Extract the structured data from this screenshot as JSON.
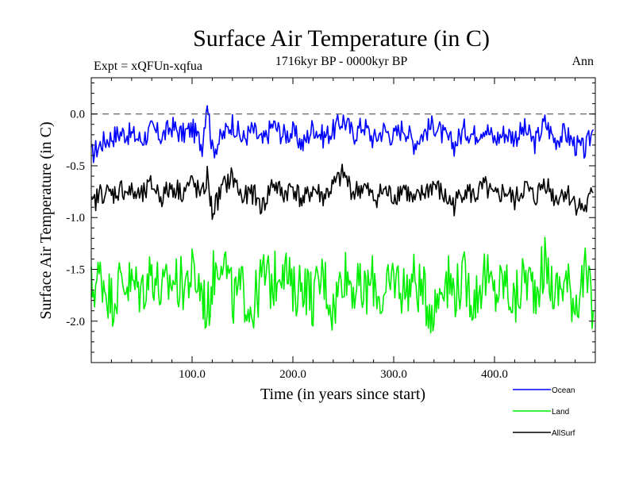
{
  "chart_data": {
    "type": "line",
    "title": "Surface Air Temperature (in C)",
    "subtitle_left": "Expt = xQFUn-xqfua",
    "subtitle_center": "1716kyr BP - 0000kyr BP",
    "subtitle_right": "Ann",
    "xlabel": "Time (in years since start)",
    "ylabel": "Surface Air Temperature (in C)",
    "xlim": [
      0,
      500
    ],
    "ylim": [
      -2.4,
      0.35
    ],
    "x_ticks": [
      100,
      200,
      300,
      400
    ],
    "x_tick_labels": [
      "100.0",
      "200.0",
      "300.0",
      "400.0"
    ],
    "y_ticks": [
      0.0,
      -0.5,
      -1.0,
      -1.5,
      -2.0
    ],
    "y_tick_labels": [
      "0.0",
      "-0.5",
      "-1.0",
      "-1.5",
      "-2.0"
    ],
    "reference_line": 0.0,
    "legend_position": "bottom-right",
    "x": [
      0,
      10,
      20,
      30,
      40,
      50,
      60,
      70,
      80,
      90,
      100,
      110,
      115,
      120,
      130,
      140,
      150,
      160,
      170,
      180,
      190,
      200,
      210,
      220,
      230,
      240,
      250,
      260,
      270,
      280,
      290,
      300,
      310,
      320,
      330,
      340,
      350,
      360,
      370,
      380,
      390,
      400,
      410,
      420,
      430,
      440,
      450,
      460,
      470,
      480,
      490,
      498
    ],
    "series": [
      {
        "name": "Ocean",
        "color": "#0000ff",
        "values": [
          -0.4,
          -0.28,
          -0.22,
          -0.18,
          -0.2,
          -0.25,
          -0.15,
          -0.22,
          -0.12,
          -0.2,
          -0.14,
          -0.3,
          0.15,
          -0.35,
          -0.22,
          -0.08,
          -0.25,
          -0.15,
          -0.28,
          -0.1,
          -0.2,
          -0.18,
          -0.3,
          -0.12,
          -0.22,
          -0.16,
          -0.05,
          -0.2,
          -0.1,
          -0.25,
          -0.15,
          -0.22,
          -0.12,
          -0.28,
          -0.18,
          -0.1,
          -0.22,
          -0.3,
          -0.15,
          -0.2,
          -0.12,
          -0.25,
          -0.18,
          -0.22,
          -0.15,
          -0.28,
          -0.08,
          -0.25,
          -0.18,
          -0.3,
          -0.35,
          -0.15
        ]
      },
      {
        "name": "Land",
        "color": "#00ee00",
        "values": [
          -1.7,
          -1.55,
          -1.8,
          -1.6,
          -1.65,
          -1.7,
          -1.5,
          -1.75,
          -1.6,
          -1.65,
          -1.55,
          -1.7,
          -1.95,
          -1.6,
          -1.3,
          -1.8,
          -1.7,
          -1.9,
          -1.55,
          -1.65,
          -1.4,
          -1.75,
          -1.6,
          -1.8,
          -1.55,
          -1.9,
          -1.5,
          -1.65,
          -1.75,
          -1.6,
          -1.85,
          -1.55,
          -1.7,
          -1.6,
          -1.75,
          -1.9,
          -1.55,
          -1.7,
          -1.6,
          -1.8,
          -1.55,
          -1.75,
          -1.6,
          -1.85,
          -1.55,
          -1.7,
          -1.45,
          -1.75,
          -1.6,
          -1.8,
          -1.55,
          -1.9
        ]
      },
      {
        "name": "AllSurf",
        "color": "#000000",
        "values": [
          -0.9,
          -0.75,
          -0.78,
          -0.72,
          -0.76,
          -0.8,
          -0.68,
          -0.8,
          -0.7,
          -0.75,
          -0.66,
          -0.8,
          -0.6,
          -0.95,
          -0.72,
          -0.6,
          -0.82,
          -0.76,
          -0.9,
          -0.66,
          -0.78,
          -0.7,
          -0.85,
          -0.72,
          -0.8,
          -0.7,
          -0.58,
          -0.76,
          -0.7,
          -0.82,
          -0.74,
          -0.8,
          -0.7,
          -0.86,
          -0.76,
          -0.68,
          -0.8,
          -0.88,
          -0.72,
          -0.8,
          -0.7,
          -0.82,
          -0.74,
          -0.84,
          -0.7,
          -0.82,
          -0.64,
          -0.82,
          -0.74,
          -0.86,
          -0.92,
          -0.76
        ]
      }
    ]
  }
}
